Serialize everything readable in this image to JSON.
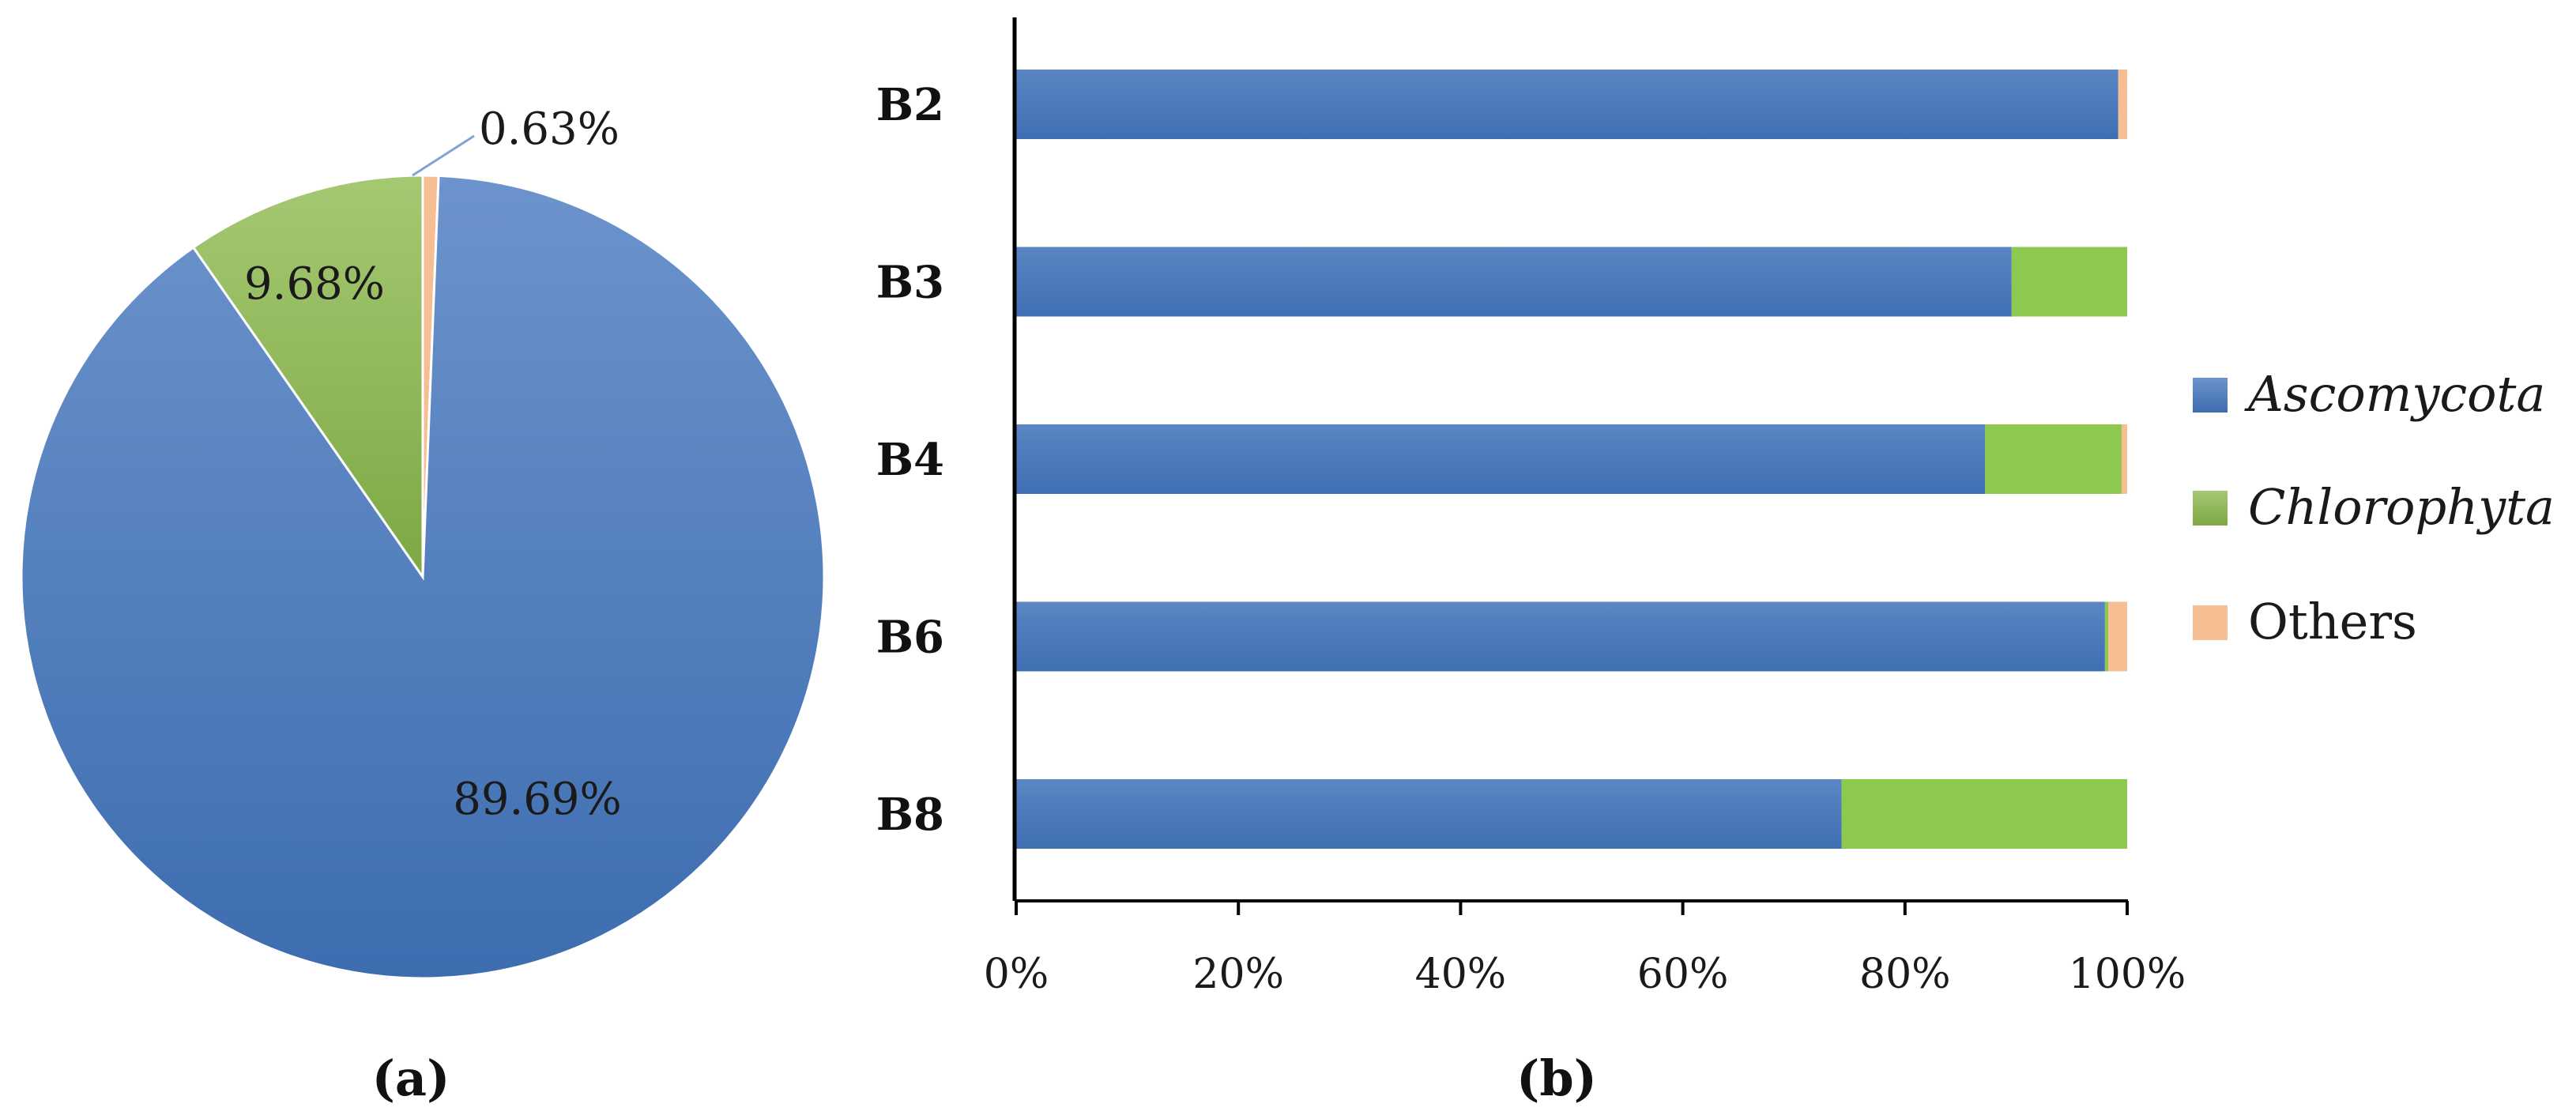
{
  "chart_data": [
    {
      "type": "pie",
      "caption": "(a)",
      "slices": [
        {
          "label": "Ascomycota",
          "value": 89.69,
          "display": "89.69%",
          "color": "#4576B7"
        },
        {
          "label": "Chlorophyta",
          "value": 9.68,
          "display": "9.68%",
          "color": "#8FB852"
        },
        {
          "label": "Others",
          "value": 0.63,
          "display": "0.63%",
          "color": "#F6BE93"
        }
      ]
    },
    {
      "type": "bar",
      "orientation": "horizontal",
      "stacked": true,
      "percent_stacked": true,
      "caption": "(b)",
      "categories": [
        "B2",
        "B3",
        "B4",
        "B6",
        "B8"
      ],
      "xlim": [
        0,
        100
      ],
      "x_ticks": [
        "0%",
        "20%",
        "40%",
        "60%",
        "80%",
        "100%"
      ],
      "legend_position": "right",
      "series": [
        {
          "name": "Ascomycota",
          "italic": true,
          "color": "#4576B7",
          "values": [
            99.2,
            89.6,
            87.2,
            98.0,
            74.3
          ]
        },
        {
          "name": "Chlorophyta",
          "italic": true,
          "color": "#8DC94E",
          "values": [
            0.0,
            10.4,
            12.3,
            0.3,
            25.7
          ]
        },
        {
          "name": "Others",
          "italic": false,
          "color": "#F6BE93",
          "values": [
            0.8,
            0.0,
            0.5,
            1.7,
            0.0
          ]
        }
      ]
    }
  ]
}
